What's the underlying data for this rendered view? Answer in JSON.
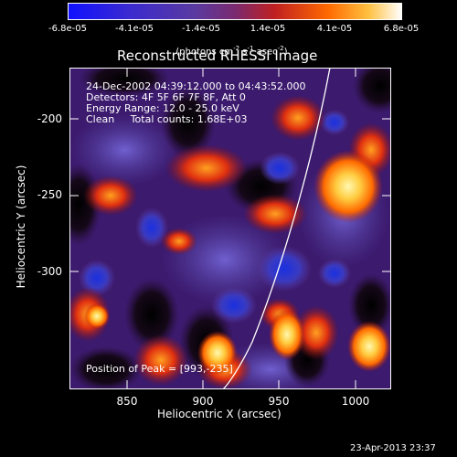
{
  "colorbar": {
    "tick_labels": [
      "-6.8e-05",
      "-4.1e-05",
      "-1.4e-05",
      "1.4e-05",
      "4.1e-05",
      "6.8e-05"
    ],
    "unit_main": "(photons cm",
    "unit_sup1": "-2",
    "unit_mid": " s",
    "unit_sup2": "-1",
    "unit_end": " asec",
    "unit_sup3": "-2",
    "unit_close": ")"
  },
  "plot": {
    "title": "Reconstructed RHESSI Image",
    "info_lines": [
      "24-Dec-2002 04:39:12.000 to 04:43:52.000",
      "Detectors: 4F 5F 6F 7F 8F, Att 0",
      "Energy Range: 12.0 - 25.0 keV",
      "Clean     Total counts: 1.68E+03"
    ],
    "peak_label": "Position of Peak = [993,-235]",
    "xlabel": "Heliocentric X (arcsec)",
    "ylabel": "Heliocentric Y (arcsec)",
    "x_ticks": [
      "850",
      "900",
      "950",
      "1000"
    ],
    "y_ticks": [
      "-200",
      "-250",
      "-300"
    ]
  },
  "footer": {
    "timestamp": "23-Apr-2013 23:37"
  },
  "colors": {
    "background": "#000000",
    "dark_purple": "#3c1a6e",
    "blue": "#1030d0",
    "orange": "#ff6a00",
    "yellow": "#ffe060"
  }
}
